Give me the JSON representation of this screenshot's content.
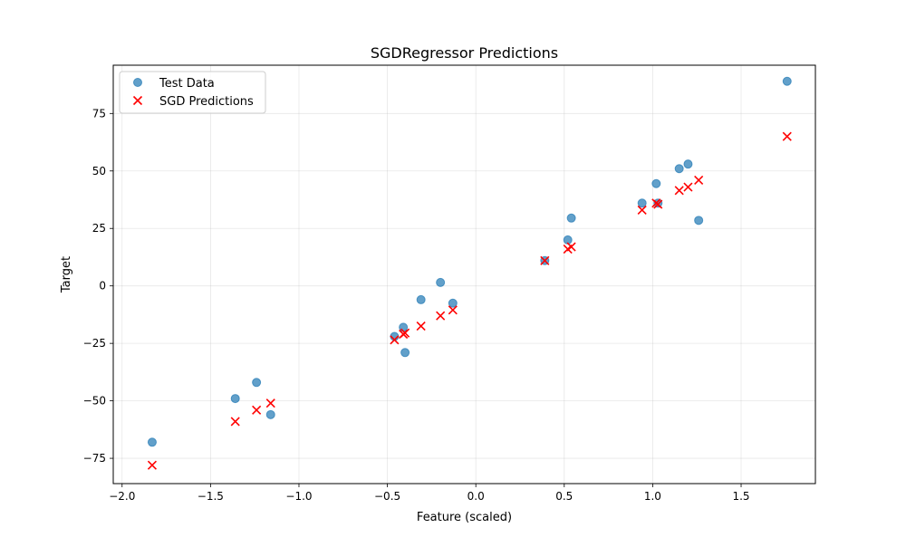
{
  "chart_data": {
    "type": "scatter",
    "title": "SGDRegressor Predictions",
    "xlabel": "Feature (scaled)",
    "ylabel": "Target",
    "xlim": [
      -2.05,
      1.92
    ],
    "ylim": [
      -86,
      96
    ],
    "xticks": [
      -2.0,
      -1.5,
      -1.0,
      -0.5,
      0.0,
      0.5,
      1.0,
      1.5
    ],
    "xtick_labels": [
      "−2.0",
      "−1.5",
      "−1.0",
      "−0.5",
      "0.0",
      "0.5",
      "1.0",
      "1.5"
    ],
    "yticks": [
      -75,
      -50,
      -25,
      0,
      25,
      50,
      75
    ],
    "ytick_labels": [
      "−75",
      "−50",
      "−25",
      "0",
      "25",
      "50",
      "75"
    ],
    "grid": true,
    "legend_position": "top-left",
    "series": [
      {
        "name": "Test Data",
        "marker": "circle",
        "color": "#1f77b4",
        "x": [
          -1.83,
          -1.36,
          -1.24,
          -1.16,
          -0.46,
          -0.41,
          -0.4,
          -0.31,
          -0.2,
          -0.13,
          0.39,
          0.52,
          0.54,
          0.94,
          1.02,
          1.03,
          1.15,
          1.2,
          1.26,
          1.76
        ],
        "y": [
          -68,
          -49,
          -42,
          -56,
          -22,
          -18,
          -29,
          -6,
          1.5,
          -7.5,
          11,
          20,
          29.5,
          36,
          44.5,
          36,
          51,
          53,
          28.5,
          89
        ]
      },
      {
        "name": "SGD Predictions",
        "marker": "x",
        "color": "#ff0000",
        "x": [
          -1.83,
          -1.36,
          -1.24,
          -1.16,
          -0.46,
          -0.41,
          -0.4,
          -0.31,
          -0.2,
          -0.13,
          0.39,
          0.52,
          0.54,
          0.94,
          1.02,
          1.03,
          1.15,
          1.2,
          1.26,
          1.76
        ],
        "y": [
          -78,
          -59,
          -54,
          -51,
          -23.5,
          -21,
          -20.5,
          -17.5,
          -13,
          -10.5,
          11,
          16,
          17,
          33,
          36,
          35.5,
          41.5,
          43,
          46,
          65
        ]
      }
    ]
  }
}
